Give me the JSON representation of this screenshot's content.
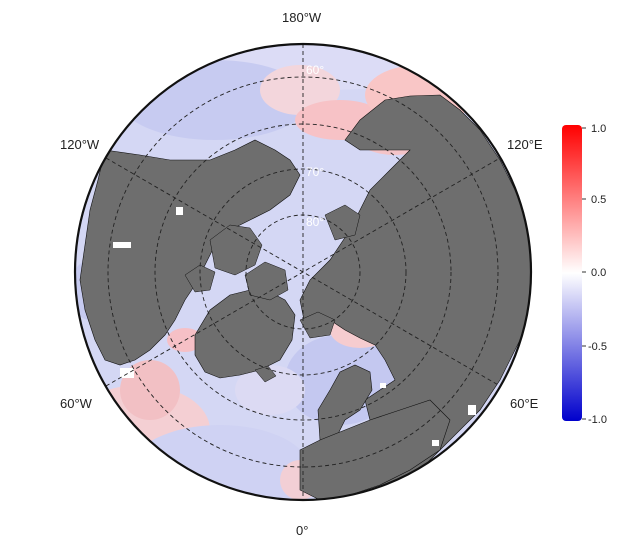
{
  "map": {
    "projection": "north-polar-stereographic",
    "longitude_labels": {
      "top": "180°W",
      "upper_left": "120°W",
      "upper_right": "120°E",
      "lower_left": "60°W",
      "lower_right": "60°E",
      "bottom": "0°"
    },
    "latitude_labels": [
      "60°",
      "70°",
      "80°"
    ],
    "colors": {
      "land": "#6e6e6e",
      "ocean_negative": "#c9cdf2",
      "ocean_positive": "#f7c8c8",
      "graticule": "#222222"
    }
  },
  "colorbar": {
    "min": -1.0,
    "max": 1.0,
    "tick_labels": [
      "1.0",
      "0.5",
      "0.0",
      "-0.5",
      "-1.0"
    ],
    "colors": {
      "high": "#ff0000",
      "mid": "#ffffff",
      "low": "#0000cc"
    }
  }
}
